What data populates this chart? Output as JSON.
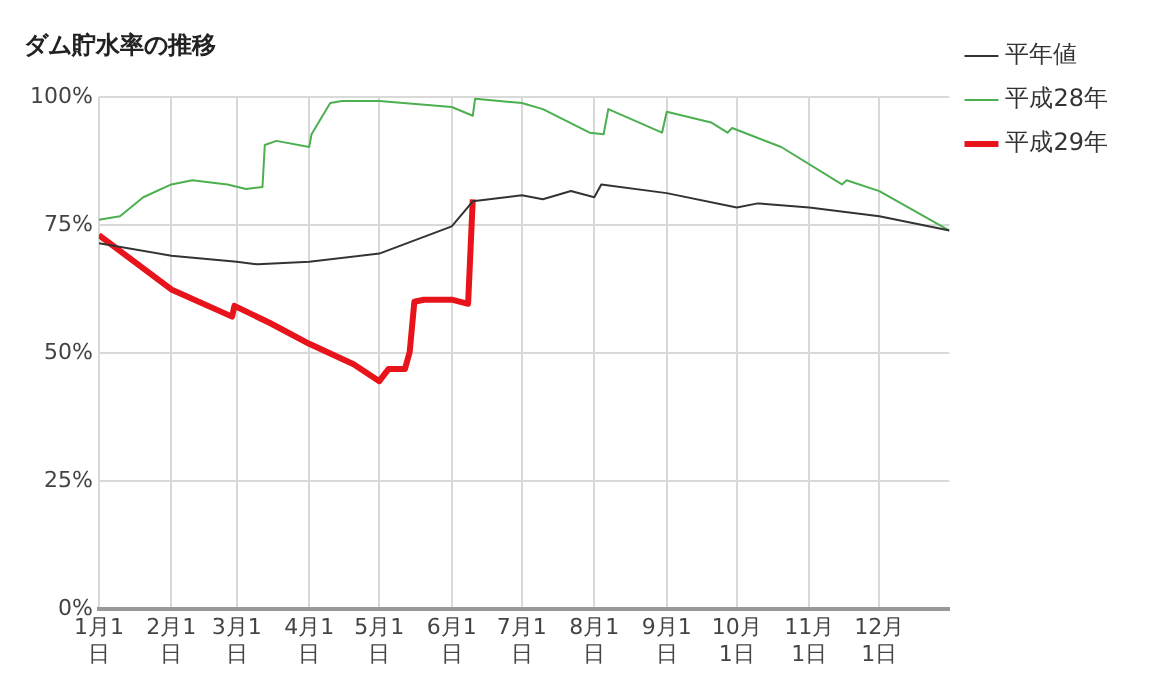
{
  "chart_data": {
    "type": "line",
    "title": "ダム貯水率の推移",
    "xlim": [
      "--01-01",
      "--12-31"
    ],
    "xticks": [
      {
        "value": "--01-01",
        "label": "1月1日"
      },
      {
        "value": "--02-01",
        "label": "2月1日"
      },
      {
        "value": "--03-01",
        "label": "3月1日"
      },
      {
        "value": "--04-01",
        "label": "4月1日"
      },
      {
        "value": "--05-01",
        "label": "5月1日"
      },
      {
        "value": "--06-01",
        "label": "6月1日"
      },
      {
        "value": "--07-01",
        "label": "7月1日"
      },
      {
        "value": "--08-01",
        "label": "8月1日"
      },
      {
        "value": "--09-01",
        "label": "9月1日"
      },
      {
        "value": "--10-01",
        "label": "10月1日"
      },
      {
        "value": "--11-01",
        "label": "11月1日"
      },
      {
        "value": "--12-01",
        "label": "12月1日"
      }
    ],
    "ylim": [
      0,
      100
    ],
    "yticks": [
      {
        "value": 0,
        "label": "0%"
      },
      {
        "value": 25,
        "label": "25%"
      },
      {
        "value": 50,
        "label": "50%"
      },
      {
        "value": 75,
        "label": "75%"
      },
      {
        "value": 100,
        "label": "100%"
      }
    ],
    "grid": true,
    "legend": "right",
    "marker": "none",
    "series": [
      {
        "name": "平年値",
        "color": "#333333",
        "x": [
          "--01-01",
          "--02-01",
          "--03-01",
          "--03-10",
          "--04-01",
          "--05-01",
          "--06-01",
          "--06-10",
          "--07-01",
          "--07-10",
          "--07-22",
          "--08-01",
          "--08-04",
          "--09-01",
          "--10-01",
          "--10-10",
          "--11-01",
          "--12-01",
          "--12-31"
        ],
        "values": [
          71.4,
          69,
          67.8,
          67.3,
          67.8,
          69.4,
          74.7,
          79.6,
          80.8,
          80,
          81.6,
          80.4,
          82.9,
          81.2,
          78.4,
          79.2,
          78.4,
          76.7,
          73.9
        ]
      },
      {
        "name": "平成28年",
        "color": "#4caf50",
        "x": [
          "--01-01",
          "--01-10",
          "--01-20",
          "--02-01",
          "--02-10",
          "--02-25",
          "--03-05",
          "--03-12",
          "--03-13",
          "--03-18",
          "--04-01",
          "--04-02",
          "--04-10",
          "--04-15",
          "--05-01",
          "--06-01",
          "--06-10",
          "--06-11",
          "--07-01",
          "--07-10",
          "--07-30",
          "--08-05",
          "--08-07",
          "--08-30",
          "--09-01",
          "--09-20",
          "--09-27",
          "--09-29",
          "--10-20",
          "--11-15",
          "--11-17",
          "--12-01",
          "--12-31"
        ],
        "values": [
          76,
          76.7,
          80.4,
          82.9,
          83.7,
          82.9,
          82,
          82.4,
          90.6,
          91.4,
          90.2,
          92.7,
          98.8,
          99.2,
          99.2,
          98,
          96.3,
          99.6,
          98.8,
          97.6,
          93,
          92.7,
          97.6,
          93,
          97.1,
          95,
          93,
          93.9,
          90.2,
          82.9,
          83.7,
          81.6,
          73.9
        ]
      },
      {
        "name": "平成29年",
        "color": "#e8141b",
        "x": [
          "--01-01",
          "--02-01",
          "--02-27",
          "--02-28",
          "--03-15",
          "--04-01",
          "--04-20",
          "--05-01",
          "--05-05",
          "--05-12",
          "--05-14",
          "--05-16",
          "--05-20",
          "--06-01",
          "--06-08",
          "--06-10"
        ],
        "values": [
          73,
          62.4,
          57.1,
          59.2,
          55.9,
          51.8,
          47.8,
          44.5,
          46.9,
          46.9,
          50.2,
          60,
          60.4,
          60.4,
          59.6,
          80
        ]
      }
    ]
  }
}
